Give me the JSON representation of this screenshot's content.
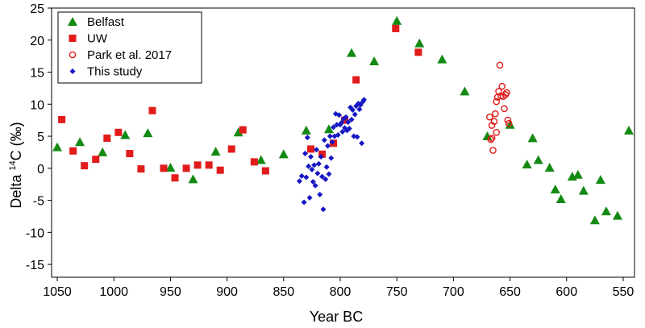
{
  "chart_data": {
    "type": "scatter",
    "xlabel": "Year BC",
    "ylabel_prefix": "Delta ",
    "ylabel_sup": "14",
    "ylabel_suffix": "C (‰)",
    "xlim": [
      1055,
      540
    ],
    "ylim": [
      -17,
      25
    ],
    "x_reversed": true,
    "xticks": [
      1050,
      1000,
      950,
      900,
      850,
      800,
      750,
      700,
      650,
      600,
      550
    ],
    "yticks": [
      -15,
      -10,
      -5,
      0,
      5,
      10,
      15,
      20,
      25
    ],
    "grid": false,
    "legend_position": "top-left",
    "series": [
      {
        "name": "Belfast",
        "marker": "triangle",
        "color": "#138a13",
        "points": [
          [
            1050,
            3.3
          ],
          [
            1030,
            4.1
          ],
          [
            1010,
            2.5
          ],
          [
            990,
            5.2
          ],
          [
            970,
            5.5
          ],
          [
            950,
            0.1
          ],
          [
            930,
            -1.7
          ],
          [
            910,
            2.6
          ],
          [
            890,
            5.6
          ],
          [
            870,
            1.3
          ],
          [
            850,
            2.2
          ],
          [
            830,
            5.9
          ],
          [
            810,
            6.1
          ],
          [
            790,
            18.0
          ],
          [
            770,
            16.7
          ],
          [
            750,
            23.0
          ],
          [
            730,
            19.5
          ],
          [
            710,
            17.0
          ],
          [
            690,
            12.0
          ],
          [
            670,
            5.0
          ],
          [
            650,
            6.8
          ],
          [
            635,
            0.6
          ],
          [
            630,
            4.7
          ],
          [
            625,
            1.3
          ],
          [
            615,
            0.1
          ],
          [
            610,
            -3.3
          ],
          [
            605,
            -4.8
          ],
          [
            595,
            -1.3
          ],
          [
            590,
            -1.0
          ],
          [
            585,
            -3.5
          ],
          [
            575,
            -8.1
          ],
          [
            570,
            -1.8
          ],
          [
            565,
            -6.7
          ],
          [
            555,
            -7.4
          ],
          [
            545,
            5.9
          ]
        ]
      },
      {
        "name": "UW",
        "marker": "square",
        "color": "#e21b1b",
        "points": [
          [
            1046,
            7.6
          ],
          [
            1036,
            2.7
          ],
          [
            1026,
            0.4
          ],
          [
            1016,
            1.4
          ],
          [
            1006,
            4.7
          ],
          [
            996,
            5.6
          ],
          [
            986,
            2.3
          ],
          [
            976,
            -0.1
          ],
          [
            966,
            9.0
          ],
          [
            956,
            0.0
          ],
          [
            946,
            -1.5
          ],
          [
            936,
            0.0
          ],
          [
            926,
            0.5
          ],
          [
            916,
            0.5
          ],
          [
            906,
            -0.3
          ],
          [
            896,
            3.0
          ],
          [
            886,
            6.0
          ],
          [
            876,
            1.0
          ],
          [
            866,
            -0.4
          ],
          [
            826,
            3.0
          ],
          [
            816,
            2.2
          ],
          [
            806,
            3.9
          ],
          [
            796,
            7.5
          ],
          [
            786,
            13.8
          ],
          [
            751,
            21.8
          ],
          [
            731,
            18.1
          ]
        ]
      },
      {
        "name": "Park et al. 2017",
        "marker": "circle-open",
        "color": "#e21b1b",
        "points": [
          [
            668,
            8.0
          ],
          [
            667,
            4.5
          ],
          [
            666,
            6.7
          ],
          [
            665,
            2.8
          ],
          [
            664,
            7.3
          ],
          [
            663,
            8.5
          ],
          [
            662,
            10.4
          ],
          [
            661,
            11.1
          ],
          [
            660,
            12.0
          ],
          [
            659,
            16.1
          ],
          [
            658,
            11.3
          ],
          [
            657,
            12.8
          ],
          [
            656,
            11.2
          ],
          [
            655,
            9.3
          ],
          [
            654,
            11.5
          ],
          [
            653,
            11.8
          ],
          [
            652,
            7.5
          ],
          [
            651,
            7.0
          ],
          [
            666,
            4.7
          ],
          [
            662,
            5.6
          ]
        ]
      },
      {
        "name": "This study",
        "marker": "diamond",
        "color": "#1616c4",
        "points": [
          [
            836,
            -2.0
          ],
          [
            834,
            -1.2
          ],
          [
            832,
            -5.3
          ],
          [
            831,
            2.3
          ],
          [
            830,
            -1.4
          ],
          [
            829,
            4.8
          ],
          [
            828,
            0.3
          ],
          [
            827,
            -4.6
          ],
          [
            826,
            1.8
          ],
          [
            825,
            -0.2
          ],
          [
            824,
            -2.1
          ],
          [
            823,
            0.5
          ],
          [
            822,
            -2.7
          ],
          [
            821,
            2.9
          ],
          [
            820,
            -0.8
          ],
          [
            819,
            0.7
          ],
          [
            818,
            -4.1
          ],
          [
            817,
            1.8
          ],
          [
            816,
            -1.3
          ],
          [
            815,
            -6.4
          ],
          [
            814,
            4.4
          ],
          [
            813,
            -1.7
          ],
          [
            812,
            0.2
          ],
          [
            811,
            3.5
          ],
          [
            810,
            -0.9
          ],
          [
            809,
            5.0
          ],
          [
            808,
            1.6
          ],
          [
            807,
            4.1
          ],
          [
            806,
            6.4
          ],
          [
            805,
            5.0
          ],
          [
            804,
            8.5
          ],
          [
            803,
            6.8
          ],
          [
            802,
            5.2
          ],
          [
            801,
            8.3
          ],
          [
            800,
            6.8
          ],
          [
            799,
            7.1
          ],
          [
            798,
            5.7
          ],
          [
            797,
            7.7
          ],
          [
            796,
            6.3
          ],
          [
            795,
            8.0
          ],
          [
            794,
            5.9
          ],
          [
            793,
            7.2
          ],
          [
            792,
            6.2
          ],
          [
            791,
            9.5
          ],
          [
            790,
            7.6
          ],
          [
            789,
            9.1
          ],
          [
            788,
            5.0
          ],
          [
            787,
            8.4
          ],
          [
            786,
            9.7
          ],
          [
            785,
            4.9
          ],
          [
            784,
            10.1
          ],
          [
            783,
            9.2
          ],
          [
            782,
            9.9
          ],
          [
            781,
            3.9
          ],
          [
            780,
            10.4
          ],
          [
            779,
            10.7
          ]
        ]
      }
    ]
  }
}
